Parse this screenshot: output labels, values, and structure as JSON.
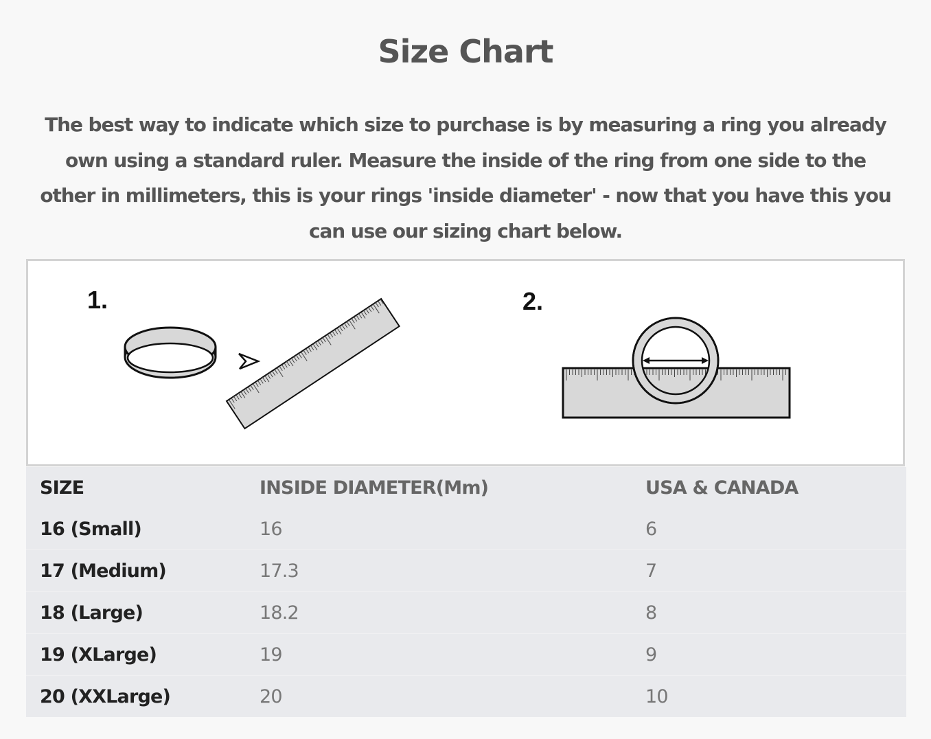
{
  "title": "Size Chart",
  "intro": "The best way to indicate which size to purchase is by measuring a ring you already own using a standard ruler. Measure the inside of the ring from one side to the other in millimeters, this is your rings 'inside diameter' - now that you have this you can use our sizing chart below.",
  "illustration": {
    "step1_label": "1.",
    "step2_label": "2."
  },
  "table": {
    "headers": [
      "SIZE",
      "INSIDE DIAMETER(Mm)",
      "USA & CANADA"
    ],
    "rows": [
      [
        "16 (Small)",
        "16",
        "6"
      ],
      [
        "17 (Medium)",
        "17.3",
        "7"
      ],
      [
        "18 (Large)",
        "18.2",
        "8"
      ],
      [
        "19 (XLarge)",
        "19",
        "9"
      ],
      [
        "20 (XXLarge)",
        "20",
        "10"
      ]
    ]
  }
}
